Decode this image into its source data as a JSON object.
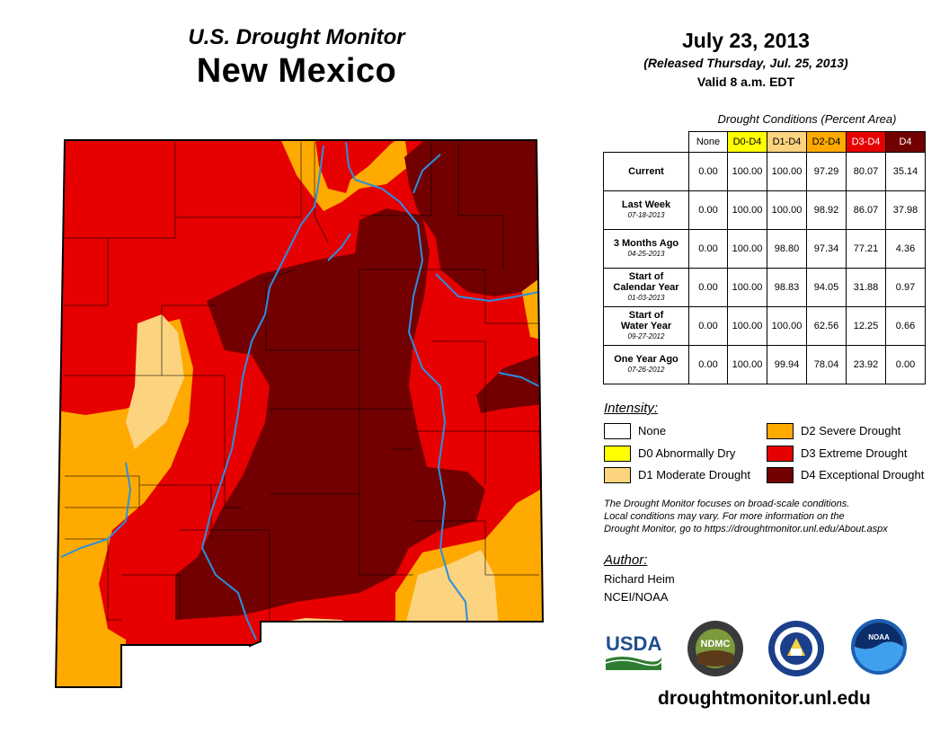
{
  "header": {
    "subtitle": "U.S. Drought Monitor",
    "state": "New Mexico",
    "date": "July 23, 2013",
    "released": "(Released Thursday, Jul. 25, 2013)",
    "valid": "Valid 8 a.m. EDT"
  },
  "table": {
    "caption": "Drought Conditions (Percent Area)",
    "columns": [
      {
        "label": "None",
        "color": "#ffffff",
        "text_color": "#000000"
      },
      {
        "label": "D0-D4",
        "color": "#ffff00",
        "text_color": "#000000"
      },
      {
        "label": "D1-D4",
        "color": "#fcd37f",
        "text_color": "#000000"
      },
      {
        "label": "D2-D4",
        "color": "#ffaa00",
        "text_color": "#000000"
      },
      {
        "label": "D3-D4",
        "color": "#e60000",
        "text_color": "#ffffff"
      },
      {
        "label": "D4",
        "color": "#730000",
        "text_color": "#ffffff"
      }
    ],
    "rows": [
      {
        "label": "Current",
        "label2": "",
        "date": "",
        "values": [
          "0.00",
          "100.00",
          "100.00",
          "97.29",
          "80.07",
          "35.14"
        ]
      },
      {
        "label": "Last Week",
        "label2": "",
        "date": "07-18-2013",
        "values": [
          "0.00",
          "100.00",
          "100.00",
          "98.92",
          "86.07",
          "37.98"
        ]
      },
      {
        "label": "3 Months Ago",
        "label2": "",
        "date": "04-25-2013",
        "values": [
          "0.00",
          "100.00",
          "98.80",
          "97.34",
          "77.21",
          "4.36"
        ]
      },
      {
        "label": "Start of",
        "label2": "Calendar Year",
        "date": "01-03-2013",
        "values": [
          "0.00",
          "100.00",
          "98.83",
          "94.05",
          "31.88",
          "0.97"
        ]
      },
      {
        "label": "Start of",
        "label2": "Water Year",
        "date": "09-27-2012",
        "values": [
          "0.00",
          "100.00",
          "100.00",
          "62.56",
          "12.25",
          "0.66"
        ]
      },
      {
        "label": "One Year Ago",
        "label2": "",
        "date": "07-26-2012",
        "values": [
          "0.00",
          "100.00",
          "99.94",
          "78.04",
          "23.92",
          "0.00"
        ]
      }
    ]
  },
  "legend": {
    "title": "Intensity:",
    "items": [
      {
        "label": "None",
        "color": "#ffffff"
      },
      {
        "label": "D0 Abnormally Dry",
        "color": "#ffff00"
      },
      {
        "label": "D1 Moderate Drought",
        "color": "#fcd37f"
      },
      {
        "label": "D2 Severe Drought",
        "color": "#ffaa00"
      },
      {
        "label": "D3 Extreme Drought",
        "color": "#e60000"
      },
      {
        "label": "D4 Exceptional Drought",
        "color": "#730000"
      }
    ]
  },
  "note": {
    "line1": "The Drought Monitor focuses on broad-scale conditions.",
    "line2": "Local conditions may vary. For more information on the",
    "line3": "Drought Monitor, go to https://droughtmonitor.unl.edu/About.aspx"
  },
  "author": {
    "title": "Author:",
    "name": "Richard Heim",
    "org": "NCEI/NOAA"
  },
  "logos": {
    "usda": "USDA",
    "ndmc": "NDMC",
    "noaa": "NOAA"
  },
  "website": "droughtmonitor.unl.edu",
  "colors": {
    "d1": "#fcd37f",
    "d2": "#ffaa00",
    "d3": "#e60000",
    "d4": "#730000",
    "river": "#2b8fe0"
  }
}
